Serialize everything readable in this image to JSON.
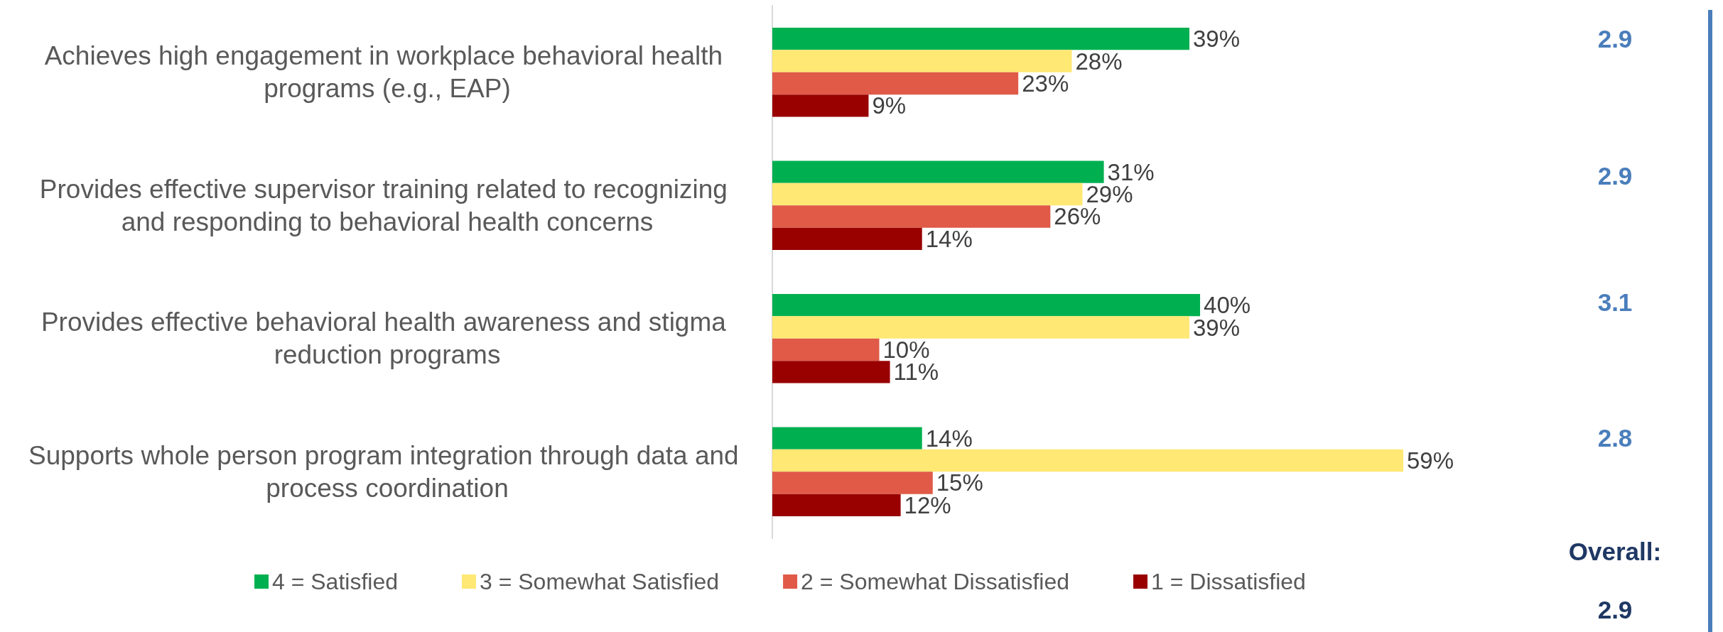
{
  "chart_data": {
    "type": "bar",
    "orientation": "horizontal",
    "categories": [
      "Achieves high engagement in workplace behavioral health programs (e.g., EAP)",
      "Provides effective supervisor training related to recognizing and responding to behavioral health concerns",
      "Provides effective behavioral health awareness and stigma reduction programs",
      "Supports whole person program integration through data and process coordination"
    ],
    "series": [
      {
        "name": "4 = Satisfied",
        "color": "#00b050",
        "values": [
          39,
          31,
          40,
          14
        ],
        "value_labels": [
          "39%",
          "31%",
          "40%",
          "14%"
        ]
      },
      {
        "name": "3 = Somewhat Satisfied",
        "color": "#ffe873",
        "values": [
          28,
          29,
          39,
          59
        ],
        "value_labels": [
          "28%",
          "29%",
          "39%",
          "59%"
        ]
      },
      {
        "name": "2 = Somewhat Dissatisfied",
        "color": "#e05a47",
        "values": [
          23,
          26,
          10,
          15
        ],
        "value_labels": [
          "23%",
          "26%",
          "10%",
          "15%"
        ]
      },
      {
        "name": "1 = Dissatisfied",
        "color": "#990000",
        "values": [
          9,
          14,
          11,
          12
        ],
        "value_labels": [
          "9%",
          "14%",
          "11%",
          "12%"
        ]
      }
    ],
    "annotations": [
      "2.9",
      "2.9",
      "3.1",
      "2.8",
      "Overall:",
      "2.9"
    ],
    "legend": "bottom",
    "tick_labels": "y"
  }
}
